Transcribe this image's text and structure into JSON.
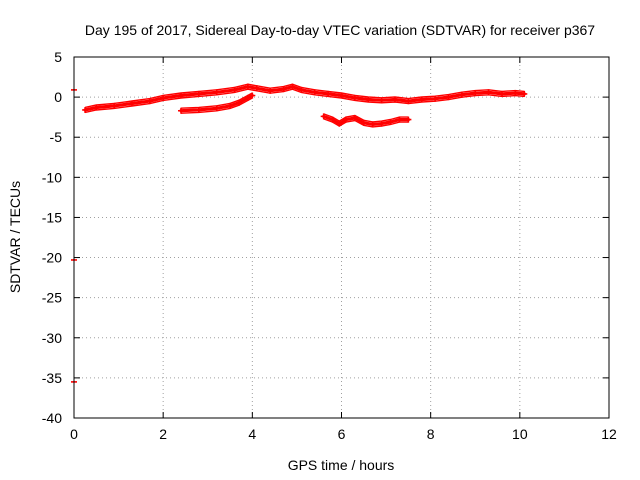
{
  "chart_data": {
    "type": "line",
    "title": "Day 195 of 2017, Sidereal Day-to-day VTEC variation (SDTVAR) for receiver p367",
    "xlabel": "GPS time / hours",
    "ylabel": "SDTVAR / TECUs",
    "xlim": [
      0,
      12
    ],
    "ylim": [
      -40,
      5
    ],
    "xticks": [
      "0",
      "2",
      "4",
      "6",
      "8",
      "10",
      "12"
    ],
    "yticks": [
      "5",
      "0",
      "-5",
      "-10",
      "-15",
      "-20",
      "-25",
      "-30",
      "-35",
      "-40"
    ],
    "grid": true,
    "color": "#ff0000",
    "series": [
      {
        "x": [
          0.25,
          0.5,
          0.9,
          1.3,
          1.7,
          2.0,
          2.4,
          2.8,
          3.2,
          3.6,
          3.9,
          4.1,
          4.4,
          4.7,
          4.9,
          5.1,
          5.4,
          5.7,
          6.0,
          6.3,
          6.6,
          6.9,
          7.2,
          7.5,
          7.8,
          8.1,
          8.4,
          8.7,
          9.0,
          9.3,
          9.6,
          9.9,
          10.1
        ],
        "y": [
          -1.6,
          -1.3,
          -1.1,
          -0.8,
          -0.5,
          -0.1,
          0.2,
          0.4,
          0.6,
          0.9,
          1.3,
          1.1,
          0.8,
          1.0,
          1.3,
          0.9,
          0.6,
          0.4,
          0.2,
          -0.1,
          -0.3,
          -0.4,
          -0.3,
          -0.5,
          -0.3,
          -0.2,
          0.0,
          0.3,
          0.5,
          0.6,
          0.4,
          0.5,
          0.4
        ]
      },
      {
        "x": [
          2.4,
          2.8,
          3.2,
          3.5,
          3.7,
          3.9,
          4.0
        ],
        "y": [
          -1.7,
          -1.6,
          -1.4,
          -1.1,
          -0.7,
          -0.1,
          0.2
        ]
      },
      {
        "x": [
          5.6,
          5.8,
          5.95,
          6.1,
          6.3,
          6.5,
          6.7,
          6.9,
          7.1,
          7.3,
          7.5
        ],
        "y": [
          -2.4,
          -2.8,
          -3.3,
          -2.8,
          -2.6,
          -3.2,
          -3.4,
          -3.3,
          -3.1,
          -2.8,
          -2.8
        ]
      }
    ],
    "outlier_points": [
      {
        "x": 0.0,
        "y": 0.9
      },
      {
        "x": 0.0,
        "y": -20.3
      },
      {
        "x": 0.0,
        "y": -35.5
      }
    ]
  }
}
